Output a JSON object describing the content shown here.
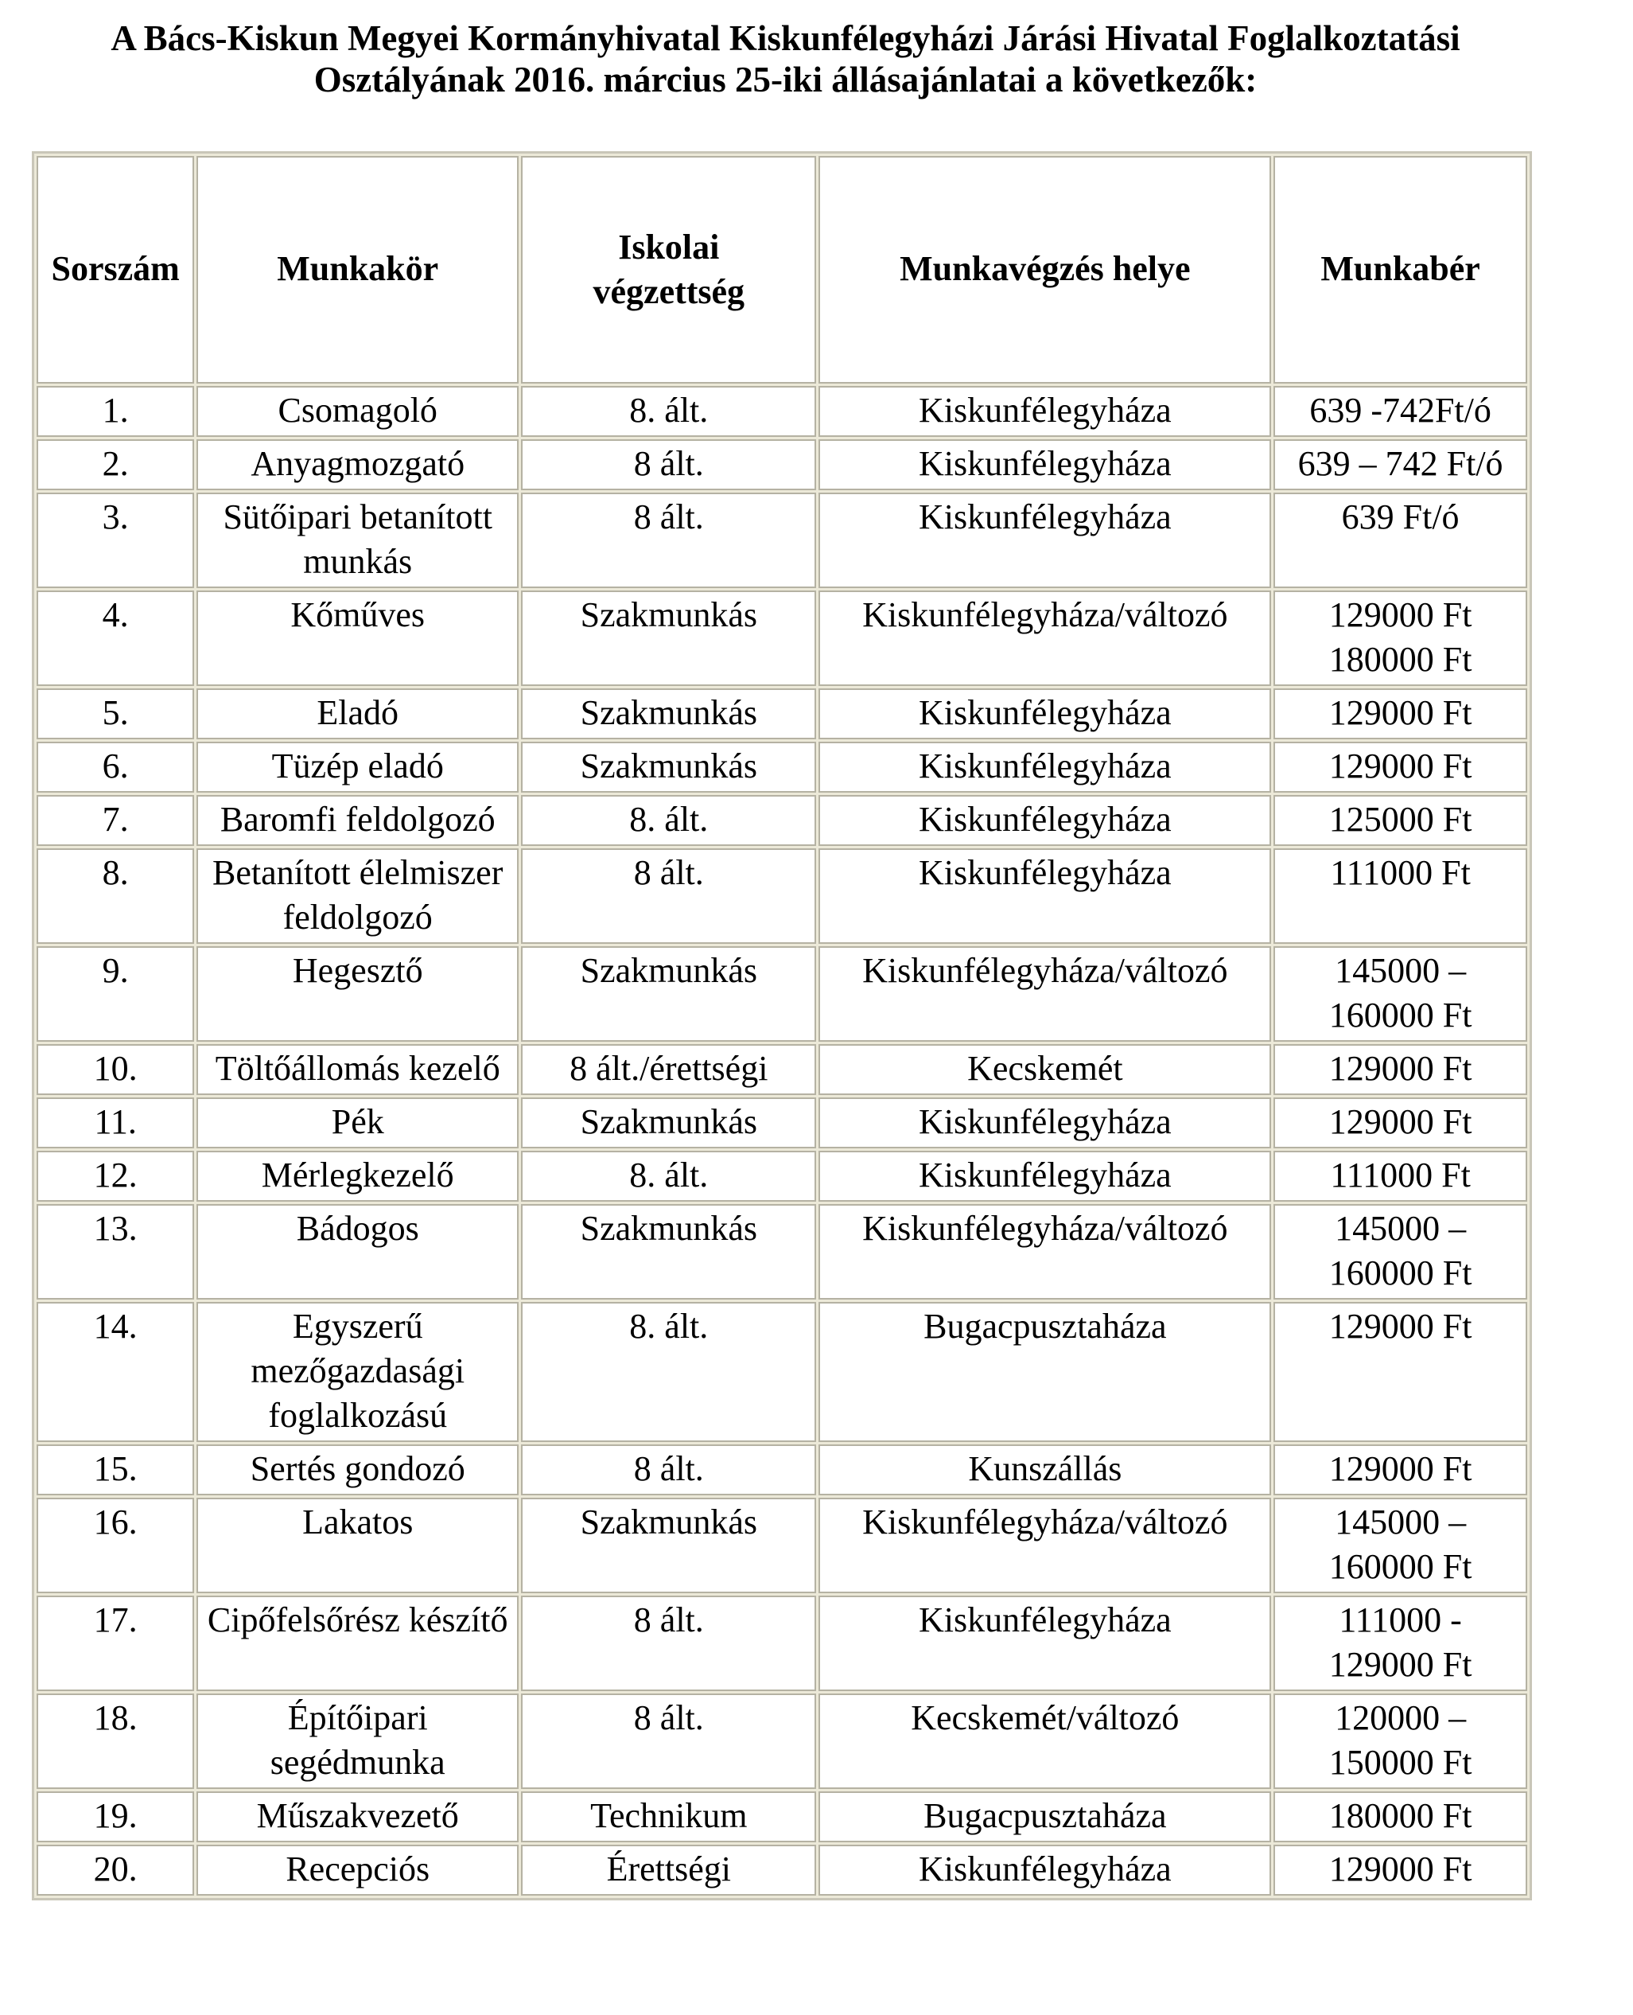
{
  "title": {
    "line1": "A Bács-Kiskun Megyei Kormányhivatal Kiskunfélegyházi Járási Hivatal Foglalkoztatási",
    "line2": "Osztályának 2016. március 25-iki állásajánlatai a következők:"
  },
  "table": {
    "headers": [
      "Sorszám",
      "Munkakör",
      "Iskolai végzettség",
      "Munkavégzés helye",
      "Munkabér"
    ],
    "rows": [
      [
        "1.",
        "Csomagoló",
        "8. ált.",
        "Kiskunfélegyháza",
        "639 -742Ft/ó"
      ],
      [
        "2.",
        "Anyagmozgató",
        "8 ált.",
        "Kiskunfélegyháza",
        "639 – 742 Ft/ó"
      ],
      [
        "3.",
        "Sütőipari betanított munkás",
        "8 ált.",
        "Kiskunfélegyháza",
        "639 Ft/ó"
      ],
      [
        "4.",
        "Kőműves",
        "Szakmunkás",
        "Kiskunfélegyháza/változó",
        "129000 Ft 180000 Ft"
      ],
      [
        "5.",
        "Eladó",
        "Szakmunkás",
        "Kiskunfélegyháza",
        "129000 Ft"
      ],
      [
        "6.",
        "Tüzép eladó",
        "Szakmunkás",
        "Kiskunfélegyháza",
        "129000 Ft"
      ],
      [
        "7.",
        "Baromfi feldolgozó",
        "8. ált.",
        "Kiskunfélegyháza",
        "125000 Ft"
      ],
      [
        "8.",
        "Betanított élelmiszer feldolgozó",
        "8 ált.",
        "Kiskunfélegyháza",
        "111000 Ft"
      ],
      [
        "9.",
        "Hegesztő",
        "Szakmunkás",
        "Kiskunfélegyháza/változó",
        "145000 – 160000 Ft"
      ],
      [
        "10.",
        "Töltőállomás kezelő",
        "8 ált./érettségi",
        "Kecskemét",
        "129000 Ft"
      ],
      [
        "11.",
        "Pék",
        "Szakmunkás",
        "Kiskunfélegyháza",
        "129000 Ft"
      ],
      [
        "12.",
        "Mérlegkezelő",
        "8. ált.",
        "Kiskunfélegyháza",
        "111000 Ft"
      ],
      [
        "13.",
        "Bádogos",
        "Szakmunkás",
        "Kiskunfélegyháza/változó",
        "145000 – 160000 Ft"
      ],
      [
        "14.",
        "Egyszerű mezőgazdasági foglalkozású",
        "8. ált.",
        "Bugacpusztaháza",
        "129000 Ft"
      ],
      [
        "15.",
        "Sertés gondozó",
        "8 ált.",
        "Kunszállás",
        "129000 Ft"
      ],
      [
        "16.",
        "Lakatos",
        "Szakmunkás",
        "Kiskunfélegyháza/változó",
        "145000 – 160000 Ft"
      ],
      [
        "17.",
        "Cipőfelsőrész készítő",
        "8 ált.",
        "Kiskunfélegyháza",
        "111000 - 129000 Ft"
      ],
      [
        "18.",
        "Építőipari segédmunka",
        "8 ált.",
        "Kecskemét/változó",
        "120000 – 150000 Ft"
      ],
      [
        "19.",
        "Műszakvezető",
        "Technikum",
        "Bugacpusztaháza",
        "180000 Ft"
      ],
      [
        "20.",
        "Recepciós",
        "Érettségi",
        "Kiskunfélegyháza",
        "129000 Ft"
      ]
    ]
  }
}
